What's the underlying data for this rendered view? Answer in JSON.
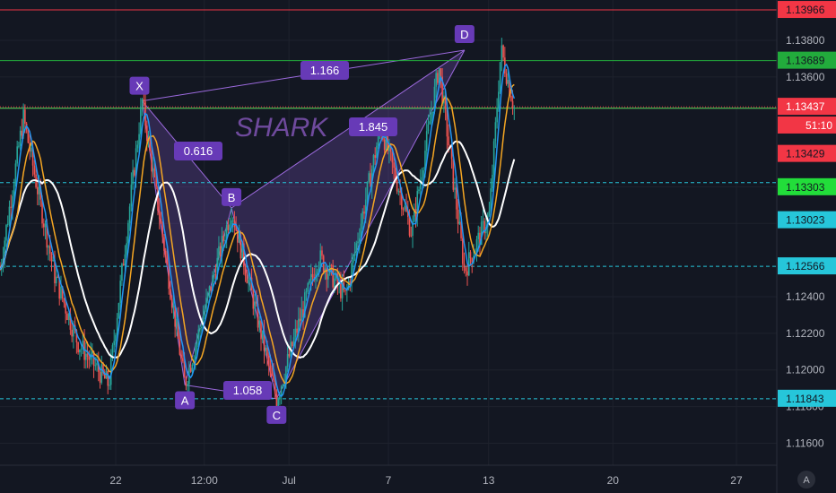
{
  "chart_data": {
    "type": "line",
    "instrument_series": "candlestick",
    "pattern_name": "SHARK",
    "y_ticks": [
      1.116,
      1.118,
      1.12,
      1.122,
      1.124,
      1.128,
      1.13,
      1.136,
      1.138
    ],
    "x_ticks": [
      "22",
      "12:00",
      "Jul",
      "7",
      "13",
      "20",
      "27"
    ],
    "ylim": [
      1.1148,
      1.1402
    ],
    "points": [
      {
        "label": "X",
        "x": 0.183,
        "price": 1.13469
      },
      {
        "label": "A",
        "x": 0.238,
        "price": 1.11918
      },
      {
        "label": "B",
        "x": 0.298,
        "price": 1.12885
      },
      {
        "label": "C",
        "x": 0.356,
        "price": 1.11843
      },
      {
        "label": "D",
        "x": 0.598,
        "price": 1.13746
      }
    ],
    "ratios": [
      {
        "text": "1.166",
        "from": "X",
        "to": "D"
      },
      {
        "text": "0.616",
        "from": "X",
        "to": "B"
      },
      {
        "text": "1.058",
        "from": "A",
        "to": "C"
      },
      {
        "text": "1.845",
        "from": "B",
        "to": "D"
      }
    ],
    "price_lines": [
      {
        "price": 1.13966,
        "color": "#f23645",
        "style": "solid",
        "label": "1.13966"
      },
      {
        "price": 1.13689,
        "color": "#22ab3c",
        "style": "solid",
        "label": "1.13689"
      },
      {
        "price": 1.13437,
        "color": "#f23645",
        "style": "dotted",
        "label": "1.13437"
      },
      {
        "price": 1.13429,
        "color": "#5fe35f",
        "style": "solid",
        "label": "1.13429"
      },
      {
        "price": 1.13023,
        "color": "#26c6da",
        "style": "dashed",
        "label": "1.13023"
      },
      {
        "price": 1.12566,
        "color": "#26c6da",
        "style": "dashed",
        "label": "1.12566"
      },
      {
        "price": 1.11843,
        "color": "#26c6da",
        "style": "dashed",
        "label": "1.11843"
      }
    ],
    "price_tags": [
      {
        "text": "1.13966",
        "price": 1.13966,
        "bg": "#f23645",
        "fg": "#131722"
      },
      {
        "text": "1.13689",
        "price": 1.13689,
        "bg": "#22ab3c",
        "fg": "#131722"
      },
      {
        "text": "1.13437",
        "price": 1.13437,
        "bg": "#f23645",
        "fg": "#ffffff"
      },
      {
        "text": "51:10",
        "price": 1.13335,
        "bg": "#f23645",
        "fg": "#ffffff"
      },
      {
        "text": "1.13429",
        "price": 1.1318,
        "bg": "#f23645",
        "fg": "#131722"
      },
      {
        "text": "1.13303",
        "price": 1.12998,
        "bg": "#22dd3a",
        "fg": "#131722"
      },
      {
        "text": "1.13023",
        "price": 1.12818,
        "bg": "#26c6da",
        "fg": "#131722"
      },
      {
        "text": "1.12566",
        "price": 1.12566,
        "bg": "#26c6da",
        "fg": "#131722"
      },
      {
        "text": "1.11843",
        "price": 1.11843,
        "bg": "#26c6da",
        "fg": "#131722"
      }
    ],
    "moving_averages": [
      {
        "color": "#ffffff",
        "period_hint": "slow"
      },
      {
        "color": "#f5a623",
        "period_hint": "medium"
      },
      {
        "color": "#2196f3",
        "period_hint": "fast"
      }
    ],
    "colors": {
      "background": "#131722",
      "up_candle": "#26a69a",
      "down_candle": "#ef5350",
      "pattern_fill": "#7e57c2",
      "pattern_stroke": "#9c6ade",
      "label_bg": "#673ab7"
    },
    "axis_badge": "A"
  }
}
